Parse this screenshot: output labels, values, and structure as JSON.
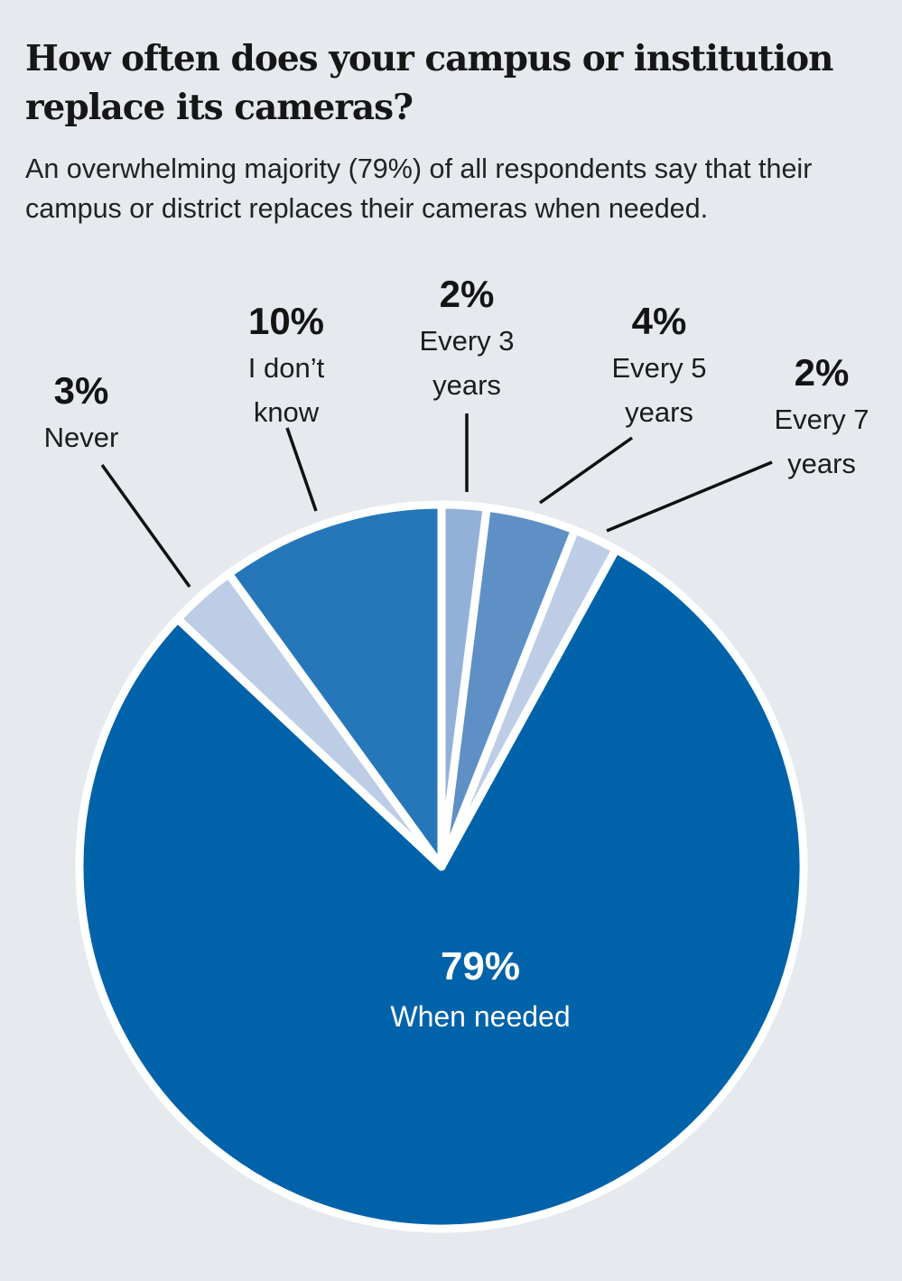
{
  "title": "How often does your campus or institution replace its cameras?",
  "subtitle": "An overwhelming majority (79%) of all respondents say that their campus or district replaces their cameras when needed.",
  "chart_data": {
    "type": "pie",
    "title": "How often does your campus or institution replace its cameras?",
    "slices": [
      {
        "label": "Every 3 years",
        "label_lines": [
          "Every 3",
          "years"
        ],
        "value": 2,
        "pct_label": "2%",
        "color": "#93b1d8"
      },
      {
        "label": "Every 5 years",
        "label_lines": [
          "Every 5",
          "years"
        ],
        "value": 4,
        "pct_label": "4%",
        "color": "#5e90c6"
      },
      {
        "label": "Every 7 years",
        "label_lines": [
          "Every 7",
          "years"
        ],
        "value": 2,
        "pct_label": "2%",
        "color": "#bdcde6"
      },
      {
        "label": "When needed",
        "label_lines": [
          "When needed"
        ],
        "value": 79,
        "pct_label": "79%",
        "color": "#0063aa"
      },
      {
        "label": "Never",
        "label_lines": [
          "Never"
        ],
        "value": 3,
        "pct_label": "3%",
        "color": "#bdcde6"
      },
      {
        "label": "I don't know",
        "label_lines": [
          "I don’t",
          "know"
        ],
        "value": 10,
        "pct_label": "10%",
        "color": "#2577b9"
      }
    ],
    "start_angle_deg": 0,
    "direction": "clockwise"
  }
}
